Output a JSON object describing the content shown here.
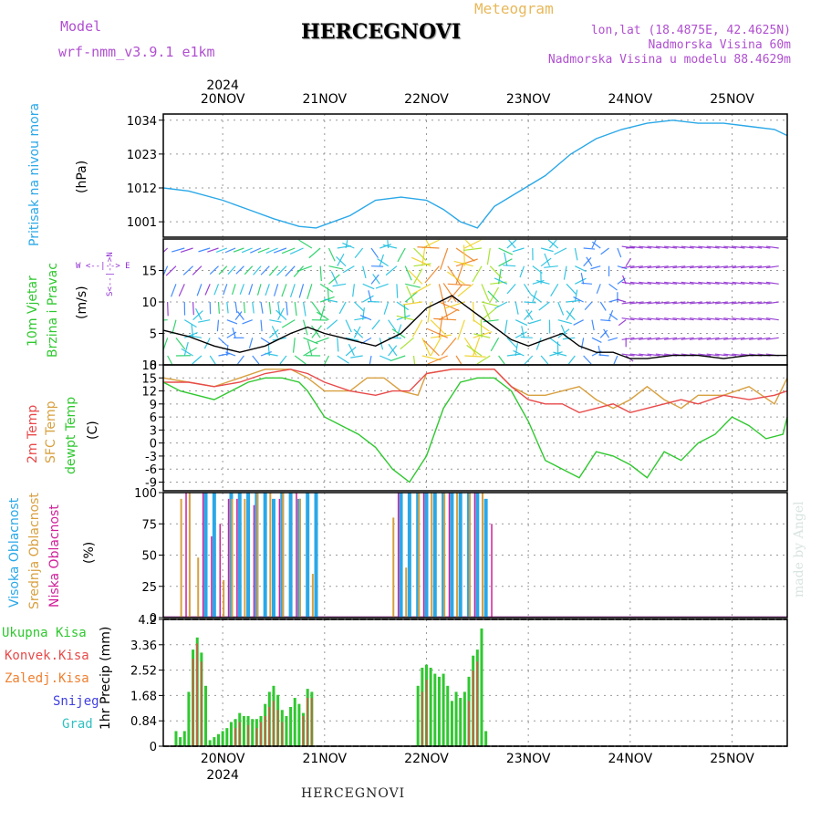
{
  "header": {
    "model_label": "Model",
    "model_name": "wrf-nmm_v3.9.1  e1km",
    "title": "HERCEGNOVI",
    "meteogram": "Meteogram",
    "lonlat": "lon,lat (18.4875E, 42.4625N)",
    "altitude": "Nadmorska Visina 60m",
    "model_altitude": "Nadmorska Visina u modelu 88.4629m",
    "footer_station": "HERCEGNOVI",
    "credit": "made by Angel"
  },
  "x_axis": {
    "year": "2024",
    "day_labels": [
      "20NOV",
      "21NOV",
      "22NOV",
      "23NOV",
      "24NOV",
      "25NOV"
    ],
    "range_hours": [
      -14,
      133
    ]
  },
  "colors": {
    "pressure": "#2aa8e8",
    "temp2m": "#e84a4a",
    "sfc_temp": "#d8a040",
    "dewpt": "#30c830",
    "vis_cloud": "#2aa8e8",
    "mid_cloud": "#d8a040",
    "low_cloud": "#d0209a",
    "precip_total": "#30c830",
    "precip_conv": "#e84a4a",
    "freezing": "#f08030",
    "snow": "#4040e0",
    "hail": "#30c0c0",
    "wind_violet": "#9030d0"
  },
  "panels": {
    "pressure": {
      "ylabel": "Pritisak na nivou mora",
      "unit": "(hPa)",
      "ticks": [
        "1001",
        "1012",
        "1023",
        "1034"
      ]
    },
    "wind": {
      "ylabel1": "10m Vjetar",
      "ylabel2": "Brzina i Pravac",
      "unit": "(m/s)",
      "ticks": [
        "0",
        "5",
        "10",
        "15"
      ],
      "compass": "W  <--|-->  E",
      "compass_v": "S<--|-->N"
    },
    "temp": {
      "ylabel1": "2m Temp",
      "ylabel2": "SFC Temp",
      "ylabel3": "dewpt Temp",
      "unit": "(C)",
      "ticks": [
        "-9",
        "-6",
        "-3",
        "0",
        "3",
        "6",
        "9",
        "12",
        "15",
        "18"
      ]
    },
    "cloud": {
      "ylabel1": "Visoka Oblacnost",
      "ylabel2": "Srednja Oblacnost",
      "ylabel3": "Niska Oblacnost",
      "unit": "(%)",
      "ticks": [
        "0",
        "25",
        "50",
        "75",
        "100"
      ]
    },
    "precip": {
      "ylabel": "1hr Precip (mm)",
      "ticks": [
        "0",
        "0.84",
        "1.68",
        "2.52",
        "3.36",
        "4.2"
      ],
      "legend": [
        "Ukupna Kisa",
        "Konvek.Kisa",
        "Zaledj.Kisa",
        "Snijeg",
        "Grad"
      ]
    }
  },
  "chart_data": [
    {
      "type": "line",
      "title": "",
      "ylabel": "Pritisak na nivou mora (hPa)",
      "ylim": [
        996,
        1036
      ],
      "series": [
        {
          "name": "Pritisak na nivou mora",
          "x": [
            -14,
            -8,
            0,
            6,
            12,
            18,
            22,
            30,
            36,
            42,
            48,
            52,
            56,
            60,
            64,
            70,
            76,
            82,
            88,
            94,
            100,
            106,
            112,
            118,
            124,
            130,
            133
          ],
          "values": [
            1012,
            1011,
            1008,
            1005,
            1002,
            999.5,
            999,
            1003,
            1008,
            1009,
            1008,
            1005,
            1001,
            999,
            1006,
            1011,
            1016,
            1023,
            1028,
            1031,
            1033,
            1034,
            1033,
            1033,
            1032,
            1031,
            1029
          ]
        }
      ]
    },
    {
      "type": "line",
      "title": "",
      "ylabel": "10m Vjetar Brzina i Pravac (m/s)",
      "ylim": [
        0,
        20
      ],
      "series": [
        {
          "name": "10m Vjetar",
          "x": [
            -14,
            -8,
            -2,
            4,
            10,
            16,
            20,
            24,
            30,
            36,
            42,
            48,
            54,
            60,
            64,
            68,
            72,
            76,
            80,
            84,
            88,
            92,
            96,
            100,
            106,
            112,
            118,
            124,
            130,
            133
          ],
          "values": [
            5.5,
            4.5,
            3,
            2,
            3,
            5,
            6,
            5,
            4,
            3,
            5,
            9,
            11,
            8,
            6,
            4,
            3,
            4,
            5,
            3,
            2,
            2,
            1,
            1,
            1.5,
            1.5,
            1,
            1.5,
            1.5,
            1.5
          ]
        }
      ]
    },
    {
      "type": "line",
      "title": "",
      "ylabel": "Temp (C)",
      "ylim": [
        -11,
        18
      ],
      "series": [
        {
          "name": "2m Temp",
          "x": [
            -14,
            -8,
            -2,
            4,
            10,
            16,
            20,
            24,
            30,
            36,
            40,
            44,
            48,
            54,
            60,
            64,
            68,
            72,
            76,
            80,
            84,
            88,
            92,
            96,
            100,
            104,
            108,
            112,
            118,
            124,
            130,
            133
          ],
          "values": [
            14,
            14,
            13,
            14,
            16,
            17,
            16,
            14,
            12,
            11,
            12,
            12,
            16,
            17,
            17,
            17,
            13,
            10,
            9,
            9,
            7,
            8,
            9,
            7,
            8,
            9,
            10,
            9,
            11,
            10,
            11,
            12
          ]
        },
        {
          "name": "SFC Temp",
          "x": [
            -14,
            -8,
            -2,
            4,
            10,
            16,
            20,
            24,
            30,
            34,
            38,
            42,
            46,
            48,
            54,
            60,
            64,
            68,
            72,
            76,
            80,
            84,
            88,
            92,
            96,
            100,
            104,
            108,
            112,
            118,
            124,
            130,
            133
          ],
          "values": [
            15,
            14,
            13,
            15,
            17,
            17,
            15,
            12,
            12,
            15,
            15,
            12,
            11,
            16,
            17,
            17,
            17,
            13,
            11,
            11,
            12,
            13,
            10,
            8,
            10,
            13,
            10,
            8,
            11,
            11,
            13,
            9,
            15
          ]
        },
        {
          "name": "dewpt Temp",
          "x": [
            -14,
            -10,
            -6,
            -2,
            2,
            6,
            10,
            14,
            18,
            20,
            24,
            28,
            32,
            36,
            40,
            44,
            48,
            52,
            56,
            60,
            64,
            68,
            72,
            76,
            80,
            84,
            88,
            92,
            96,
            100,
            104,
            108,
            112,
            116,
            120,
            124,
            128,
            132,
            133
          ],
          "values": [
            14,
            12,
            11,
            10,
            12,
            14,
            15,
            15,
            14,
            12,
            6,
            4,
            2,
            -1,
            -6,
            -9,
            -3,
            8,
            14,
            15,
            15,
            12,
            5,
            -4,
            -6,
            -8,
            -2,
            -3,
            -5,
            -8,
            -2,
            -4,
            0,
            2,
            6,
            4,
            1,
            2,
            6
          ]
        }
      ]
    },
    {
      "type": "bar",
      "title": "",
      "ylabel": "Oblacnost (%)",
      "ylim": [
        0,
        100
      ],
      "series": [
        {
          "name": "Visoka Oblacnost",
          "x": [
            -4,
            -2,
            2,
            4,
            6,
            8,
            10,
            12,
            14,
            16,
            18,
            20,
            22,
            42,
            44,
            46,
            48,
            50,
            52,
            54,
            56,
            58,
            60,
            62
          ],
          "values": [
            100,
            100,
            100,
            100,
            100,
            100,
            100,
            95,
            100,
            100,
            95,
            100,
            100,
            100,
            100,
            100,
            100,
            100,
            100,
            100,
            100,
            100,
            100,
            95
          ]
        },
        {
          "name": "Srednja Oblacnost",
          "x": [
            -10,
            -8,
            -6,
            0,
            2,
            5,
            8,
            11,
            14,
            18,
            21,
            40,
            43,
            46,
            49,
            52,
            55,
            58,
            61
          ],
          "values": [
            95,
            100,
            48,
            30,
            95,
            95,
            100,
            100,
            100,
            95,
            35,
            80,
            40,
            100,
            100,
            100,
            100,
            100,
            100
          ]
        },
        {
          "name": "Niska Oblacnost",
          "x": [
            -9,
            -5,
            -3,
            -1,
            1,
            3,
            7,
            13,
            17,
            41,
            47,
            53,
            59,
            63
          ],
          "values": [
            100,
            100,
            65,
            75,
            95,
            95,
            90,
            95,
            100,
            100,
            100,
            100,
            100,
            75
          ]
        }
      ]
    },
    {
      "type": "bar",
      "title": "",
      "ylabel": "1hr Precip (mm)",
      "ylim": [
        0,
        4.2
      ],
      "series": [
        {
          "name": "Ukupna Kisa",
          "x": [
            -11,
            -10,
            -9,
            -8,
            -7,
            -6,
            -5,
            -4,
            -3,
            -2,
            -1,
            0,
            1,
            2,
            3,
            4,
            5,
            6,
            7,
            8,
            9,
            10,
            11,
            12,
            13,
            14,
            15,
            16,
            17,
            18,
            19,
            20,
            21,
            46,
            47,
            48,
            49,
            50,
            51,
            52,
            53,
            54,
            55,
            56,
            57,
            58,
            59,
            60,
            61,
            62
          ],
          "values": [
            0.5,
            0.3,
            0.5,
            1.8,
            3.2,
            3.6,
            3.1,
            2.0,
            0.2,
            0.3,
            0.4,
            0.5,
            0.6,
            0.8,
            0.9,
            1.1,
            1.0,
            1.0,
            0.9,
            0.9,
            1.0,
            1.4,
            1.8,
            2.0,
            1.7,
            1.2,
            1.0,
            1.3,
            1.6,
            1.4,
            1.1,
            1.9,
            1.8,
            2.0,
            2.6,
            2.7,
            2.6,
            2.4,
            2.3,
            2.4,
            2.0,
            1.5,
            1.8,
            1.6,
            1.8,
            2.3,
            3.0,
            3.2,
            3.9,
            0.5
          ]
        },
        {
          "name": "Konvek.Kisa",
          "x": [
            -7,
            -6,
            -5,
            3,
            4,
            6,
            8,
            9,
            10,
            11,
            12,
            13,
            14,
            19,
            20,
            21,
            47,
            48,
            58,
            59,
            60
          ],
          "values": [
            2.9,
            3.4,
            2.8,
            0.6,
            0.8,
            0.7,
            0.6,
            0.8,
            1.0,
            1.3,
            1.5,
            1.2,
            0.8,
            1.0,
            1.6,
            1.6,
            1.8,
            2.2,
            1.5,
            2.5,
            2.8
          ]
        }
      ]
    }
  ]
}
